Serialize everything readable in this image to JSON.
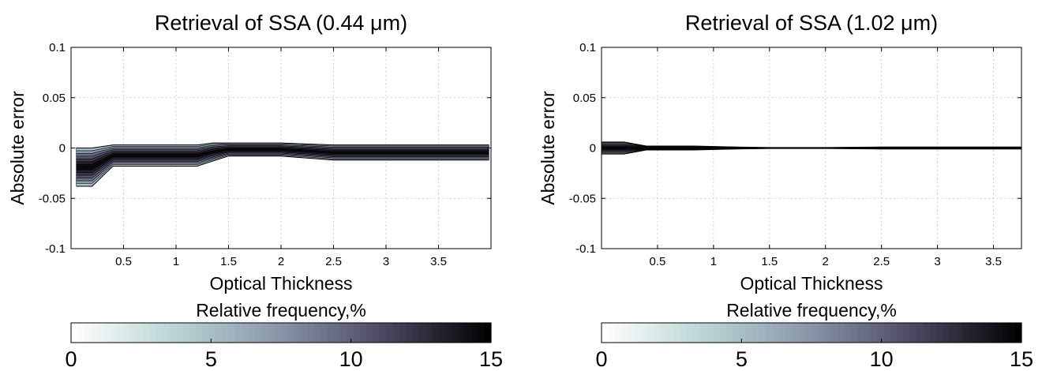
{
  "chart_data": [
    {
      "type": "area",
      "title": "Retrieval of SSA (0.44 μm)",
      "xlabel": "Optical Thickness",
      "ylabel": "Absolute error",
      "xlim": [
        0,
        4.0
      ],
      "ylim": [
        -0.1,
        0.1
      ],
      "xticks": [
        0.5,
        1,
        1.5,
        2,
        2.5,
        3,
        3.5
      ],
      "xtick_labels": [
        "0.5",
        "1",
        "1.5",
        "2",
        "2.5",
        "3",
        "3.5"
      ],
      "yticks": [
        -0.1,
        -0.05,
        0,
        0.05,
        0.1
      ],
      "ytick_labels": [
        "-0.1",
        "-0.05",
        "0",
        "0.05",
        "0.1"
      ],
      "grid": true,
      "x": [
        0.05,
        0.2,
        0.4,
        0.8,
        1.2,
        1.35,
        1.5,
        2.0,
        2.5,
        3.0,
        3.5,
        3.98
      ],
      "band": {
        "upper": [
          0.0,
          0.0,
          0.003,
          0.003,
          0.003,
          0.005,
          0.005,
          0.005,
          0.003,
          0.003,
          0.003,
          0.003
        ],
        "lower": [
          -0.038,
          -0.038,
          -0.018,
          -0.018,
          -0.018,
          -0.013,
          -0.008,
          -0.008,
          -0.012,
          -0.012,
          -0.012,
          -0.012
        ]
      },
      "colorbar": {
        "label": "Relative frequency,%",
        "ticks": [
          "0",
          "5",
          "10",
          "15"
        ],
        "range": [
          0,
          15
        ]
      }
    },
    {
      "type": "area",
      "title": "Retrieval of SSA (1.02 μm)",
      "xlabel": "Optical Thickness",
      "ylabel": "Absolute error",
      "xlim": [
        0,
        3.75
      ],
      "ylim": [
        -0.1,
        0.1
      ],
      "xticks": [
        0.5,
        1,
        1.5,
        2,
        2.5,
        3,
        3.5
      ],
      "xtick_labels": [
        "0.5",
        "1",
        "1.5",
        "2",
        "2.5",
        "3",
        "3.5"
      ],
      "yticks": [
        -0.1,
        -0.05,
        0,
        0.05,
        0.1
      ],
      "ytick_labels": [
        "-0.1",
        "-0.05",
        "0",
        "0.05",
        "0.1"
      ],
      "grid": true,
      "x": [
        0.0,
        0.2,
        0.4,
        0.8,
        1.2,
        1.5,
        2.0,
        2.5,
        3.0,
        3.5,
        3.75
      ],
      "band": {
        "upper": [
          0.006,
          0.006,
          0.002,
          0.002,
          0.001,
          0.0005,
          0.0005,
          0.001,
          0.001,
          0.001,
          0.001
        ],
        "lower": [
          -0.006,
          -0.006,
          -0.002,
          -0.002,
          -0.001,
          -0.0005,
          -0.0005,
          -0.001,
          -0.001,
          -0.001,
          -0.001
        ]
      },
      "colorbar": {
        "label": "Relative frequency,%",
        "ticks": [
          "0",
          "5",
          "10",
          "15"
        ],
        "range": [
          0,
          15
        ]
      }
    }
  ],
  "colors": {
    "colormap": [
      "#ffffff",
      "#b9d4d4",
      "#8894a8",
      "#4b4660",
      "#000000"
    ],
    "grid": "#c8c8c8",
    "axis": "#000000"
  }
}
